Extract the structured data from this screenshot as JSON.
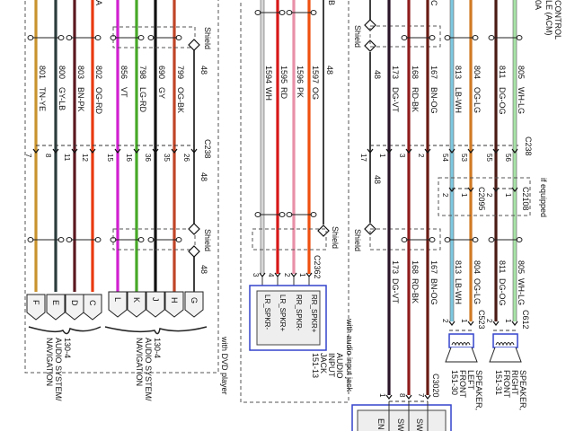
{
  "top_fragments": {
    "a": "A",
    "b": "B",
    "c": "C",
    "acm_line1": "CONTROL",
    "acm_line2": "LE (ACM)",
    "acm_line3": "0A"
  },
  "left_section": {
    "shield_label": "Shield",
    "shield_label_2": "Shield",
    "connector": "C238",
    "wires": [
      {
        "circuit": "801",
        "code": "TN-YE",
        "pin": "7",
        "term": "F",
        "color": "#c8922e"
      },
      {
        "circuit": "800",
        "code": "GY-LB",
        "pin": "8",
        "term": "E",
        "color": "#2c3c3c"
      },
      {
        "circuit": "803",
        "code": "BN-PK",
        "pin": "11",
        "term": "D",
        "color": "#5a1820"
      },
      {
        "circuit": "802",
        "code": "OG-RD",
        "pin": "12",
        "term": "C",
        "color": "#e83a10"
      },
      {
        "circuit": "856",
        "code": "VT",
        "pin": "15",
        "term": "L",
        "color": "#d020d0"
      },
      {
        "circuit": "798",
        "code": "LG-RD",
        "pin": "16",
        "term": "K",
        "color": "#48a828"
      },
      {
        "circuit": "690",
        "code": "GY",
        "pin": "36",
        "term": "J",
        "color": "#111111"
      },
      {
        "circuit": "799",
        "code": "OG-BK",
        "pin": "35",
        "term": "H",
        "color": "#c04428"
      },
      {
        "circuit": "48",
        "code": "",
        "pin": "26",
        "term": "G",
        "color": "#111111"
      }
    ],
    "drain_label_lower": "48",
    "drain_label_mid": "48",
    "module_1": {
      "id": "130-4",
      "line1": "AUDIO SYSTEM/",
      "line2": "NAVIGATION"
    },
    "module_2": {
      "id": "130-4",
      "line1": "AUDIO SYSTEM/",
      "line2": "NAVIGATION"
    },
    "option_label": "with DVD player"
  },
  "middle_section": {
    "drain_circuit": "48",
    "shield_label": "Shield",
    "connector": "C2362",
    "wires": [
      {
        "circuit": "1594",
        "code": "WH",
        "pin": "3",
        "signal": "LR_SPKR-",
        "color": "#d8d8d8"
      },
      {
        "circuit": "1595",
        "code": "RD",
        "pin": "4",
        "signal": "LR_SPKR+",
        "color": "#d81818"
      },
      {
        "circuit": "1596",
        "code": "PK",
        "pin": "2",
        "signal": "RR_SPKR-",
        "color": "#e890a8"
      },
      {
        "circuit": "1597",
        "code": "OG",
        "pin": "1",
        "signal": "RR_SPKR+",
        "color": "#f05010"
      }
    ],
    "device": {
      "line1": "AUDIO",
      "line2": "INPUT",
      "line3": "JACK",
      "ref": "151-13"
    },
    "option_label": "with audio input jack"
  },
  "right_section": {
    "shield_label": "Shield",
    "shield_label_2": "Shield",
    "connector": "C238",
    "drain": {
      "circuit": "48",
      "pin": "17"
    },
    "wires": [
      {
        "circuit": "173",
        "code": "DG-VT",
        "pin": "1",
        "pin2": "1",
        "color": "#2a1428"
      },
      {
        "circuit": "168",
        "code": "RD-BK",
        "pin": "3",
        "pin2": "8",
        "color": "#901c1c"
      },
      {
        "circuit": "167",
        "code": "BN-OG",
        "pin": "2",
        "pin2": "7",
        "color": "#6a1c14"
      },
      {
        "circuit": "813",
        "code": "LB-WH",
        "pin": "54",
        "pin2": "2",
        "pin3": "2",
        "color": "#7cc8e0"
      },
      {
        "circuit": "804",
        "code": "OG-LG",
        "pin": "53",
        "pin2": "1",
        "pin3": "1",
        "color": "#d07a24"
      },
      {
        "circuit": "811",
        "code": "DG-OG",
        "pin": "55",
        "pin2": "2",
        "pin3": "2",
        "color": "#4a1a14"
      },
      {
        "circuit": "805",
        "code": "WH-LG",
        "pin": "56",
        "pin2": "1",
        "pin3": "1",
        "color": "#a8e4a8"
      }
    ],
    "if_equipped": "if equipped",
    "connector_left_speaker_inline": "C2095",
    "connector_right_speaker_inline": "C2108",
    "connector_left_speaker": "C523",
    "connector_right_speaker": "C612",
    "connector_bottom": "C3020",
    "speaker_left": {
      "line1": "SPEAKER,",
      "line2": "LEFT",
      "line3": "FRONT",
      "ref": "151-30"
    },
    "speaker_right": {
      "line1": "SPEAKER,",
      "line2": "RIGHT",
      "line3": "FRONT",
      "ref": "151-31"
    },
    "bottom_box_pins": [
      "EN",
      "SW",
      "SW"
    ]
  }
}
